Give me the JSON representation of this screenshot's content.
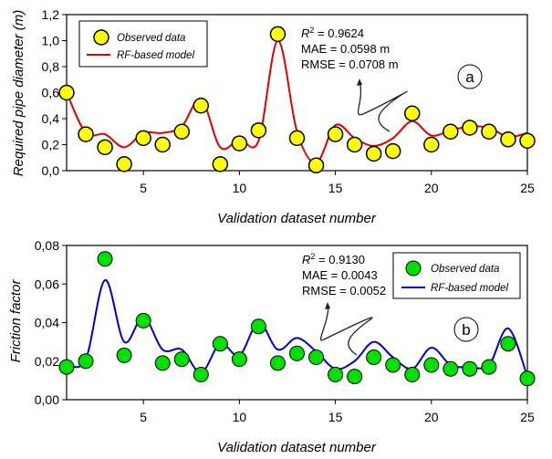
{
  "chart_data": [
    {
      "type": "line",
      "panel": "a",
      "title": "",
      "xlabel": "Validation dataset number",
      "ylabel": "Required pipe diameter (m)",
      "xlim": [
        1,
        25
      ],
      "ylim": [
        0,
        1.2
      ],
      "x_ticks": [
        5,
        10,
        15,
        20,
        25
      ],
      "x_tick_labels": [
        "5",
        "10",
        "15",
        "20",
        "25"
      ],
      "y_ticks": [
        0,
        0.2,
        0.4,
        0.6,
        0.8,
        1.0,
        1.2
      ],
      "y_tick_labels": [
        "0,0",
        "0,2",
        "0,4",
        "0,6",
        "0,8",
        "1,0",
        "1,2"
      ],
      "grid": false,
      "legend": {
        "placement": "top-left",
        "entries": [
          "Observed data",
          "RF-based model"
        ]
      },
      "x": [
        1,
        2,
        3,
        4,
        5,
        6,
        7,
        8,
        9,
        10,
        11,
        12,
        13,
        14,
        15,
        16,
        17,
        18,
        19,
        20,
        21,
        22,
        23,
        24,
        25
      ],
      "series": [
        {
          "name": "Observed data",
          "kind": "scatter",
          "color": "#ffff00",
          "edge": "#000000",
          "values": [
            0.6,
            0.28,
            0.18,
            0.05,
            0.25,
            0.2,
            0.3,
            0.5,
            0.05,
            0.21,
            0.31,
            1.05,
            0.25,
            0.04,
            0.28,
            0.2,
            0.13,
            0.15,
            0.44,
            0.2,
            0.3,
            0.33,
            0.3,
            0.24,
            0.23
          ]
        },
        {
          "name": "RF-based model",
          "kind": "line",
          "color": "#e00000",
          "values": [
            0.6,
            0.29,
            0.28,
            0.18,
            0.29,
            0.29,
            0.34,
            0.55,
            0.18,
            0.24,
            0.23,
            1.0,
            0.3,
            0.06,
            0.35,
            0.25,
            0.19,
            0.25,
            0.38,
            0.27,
            0.31,
            0.34,
            0.33,
            0.26,
            0.29
          ]
        }
      ],
      "annotations": {
        "r2_label": "R",
        "r2_sup": "2",
        "r2_value": " = 0.9624",
        "mae": "MAE  = 0.0598 m",
        "rmse": "RMSE = 0.0708 m",
        "panel_label": "a"
      }
    },
    {
      "type": "line",
      "panel": "b",
      "title": "",
      "xlabel": "Validation dataset number",
      "ylabel": "Friction factor",
      "xlim": [
        1,
        25
      ],
      "ylim": [
        0,
        0.08
      ],
      "x_ticks": [
        5,
        10,
        15,
        20,
        25
      ],
      "x_tick_labels": [
        "5",
        "10",
        "15",
        "20",
        "25"
      ],
      "y_ticks": [
        0,
        0.02,
        0.04,
        0.06,
        0.08
      ],
      "y_tick_labels": [
        "0,00",
        "0,02",
        "0,04",
        "0,06",
        "0,08"
      ],
      "grid": false,
      "legend": {
        "placement": "top-right",
        "entries": [
          "Observed data",
          "RF-based model"
        ]
      },
      "x": [
        1,
        2,
        3,
        4,
        5,
        6,
        7,
        8,
        9,
        10,
        11,
        12,
        13,
        14,
        15,
        16,
        17,
        18,
        19,
        20,
        21,
        22,
        23,
        24,
        25
      ],
      "series": [
        {
          "name": "Observed data",
          "kind": "scatter",
          "color": "#00e000",
          "edge": "#000000",
          "values": [
            0.017,
            0.02,
            0.073,
            0.023,
            0.041,
            0.019,
            0.021,
            0.013,
            0.029,
            0.021,
            0.038,
            0.019,
            0.024,
            0.022,
            0.013,
            0.012,
            0.022,
            0.018,
            0.013,
            0.018,
            0.016,
            0.016,
            0.017,
            0.029,
            0.011
          ]
        },
        {
          "name": "RF-based model",
          "kind": "line",
          "color": "#0000cc",
          "values": [
            0.018,
            0.021,
            0.062,
            0.03,
            0.043,
            0.026,
            0.026,
            0.014,
            0.029,
            0.023,
            0.04,
            0.026,
            0.032,
            0.025,
            0.016,
            0.02,
            0.03,
            0.022,
            0.016,
            0.027,
            0.018,
            0.017,
            0.018,
            0.037,
            0.012
          ]
        }
      ],
      "annotations": {
        "r2_label": "R",
        "r2_sup": "2",
        "r2_value": " = 0.9130",
        "mae": "MAE  = 0.0043",
        "rmse": "RMSE = 0.0052",
        "panel_label": "b"
      }
    }
  ]
}
